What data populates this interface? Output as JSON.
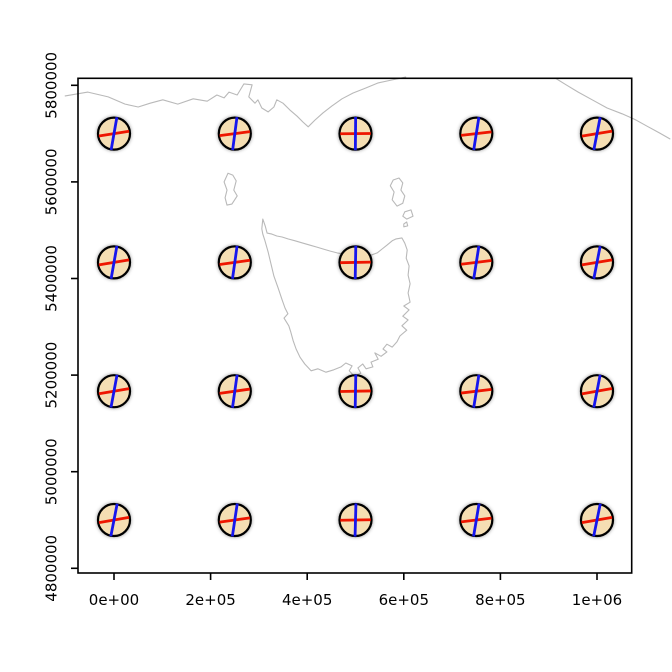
{
  "figure": {
    "background": "#ffffff",
    "description": "R plot: Tissot indicatrix symbols over Tasmania coastline"
  },
  "chart_data": {
    "type": "scatter",
    "title": "",
    "xlabel": "",
    "ylabel": "",
    "grid": false,
    "legend": false,
    "x_axis": {
      "tick_labels": [
        "0e+00",
        "2e+05",
        "4e+05",
        "6e+05",
        "8e+05",
        "1e+06"
      ],
      "tick_values": [
        0,
        200000,
        400000,
        600000,
        800000,
        1000000
      ],
      "range": [
        -74500,
        1071800
      ]
    },
    "y_axis": {
      "tick_labels": [
        "4800000",
        "5000000",
        "5200000",
        "5400000",
        "5600000",
        "5800000"
      ],
      "tick_values": [
        4800000,
        5000000,
        5200000,
        5400000,
        5600000,
        5800000
      ],
      "range": [
        4790300,
        5814500
      ]
    },
    "style": {
      "symbol_fill": "#F5DEB3",
      "symbol_outline": "#000000",
      "meridian_color": "#1414EE",
      "parallel_color": "#EE1400",
      "halo_color": "#000000",
      "coastline_color": "#B9B9B9",
      "axis_color": "#000000",
      "tick_font_px": 15
    },
    "series": [
      {
        "name": "tissot-indicatrix-symbols",
        "points": [
          {
            "x": 0,
            "y": 5700000,
            "meridian_tilt_deg": 10.0,
            "parallel_tilt_deg": 9.0
          },
          {
            "x": 250000,
            "y": 5700000,
            "meridian_tilt_deg": 7.5,
            "parallel_tilt_deg": 7.5
          },
          {
            "x": 500000,
            "y": 5700000,
            "meridian_tilt_deg": 0.5,
            "parallel_tilt_deg": 0.5
          },
          {
            "x": 750000,
            "y": 5700000,
            "meridian_tilt_deg": 9.0,
            "parallel_tilt_deg": 6.5
          },
          {
            "x": 1000000,
            "y": 5700000,
            "meridian_tilt_deg": 11.0,
            "parallel_tilt_deg": 9.5
          },
          {
            "x": 0,
            "y": 5433333,
            "meridian_tilt_deg": 10.0,
            "parallel_tilt_deg": 9.5
          },
          {
            "x": 250000,
            "y": 5433333,
            "meridian_tilt_deg": 8.0,
            "parallel_tilt_deg": 8.0
          },
          {
            "x": 500000,
            "y": 5433333,
            "meridian_tilt_deg": 1.0,
            "parallel_tilt_deg": 1.0
          },
          {
            "x": 750000,
            "y": 5433333,
            "meridian_tilt_deg": 9.0,
            "parallel_tilt_deg": 7.0
          },
          {
            "x": 1000000,
            "y": 5433333,
            "meridian_tilt_deg": 11.0,
            "parallel_tilt_deg": 9.5
          },
          {
            "x": 0,
            "y": 5166667,
            "meridian_tilt_deg": 10.5,
            "parallel_tilt_deg": 9.5
          },
          {
            "x": 250000,
            "y": 5166667,
            "meridian_tilt_deg": 8.0,
            "parallel_tilt_deg": 8.0
          },
          {
            "x": 500000,
            "y": 5166667,
            "meridian_tilt_deg": 1.0,
            "parallel_tilt_deg": 1.0
          },
          {
            "x": 750000,
            "y": 5166667,
            "meridian_tilt_deg": 9.0,
            "parallel_tilt_deg": 7.0
          },
          {
            "x": 1000000,
            "y": 5166667,
            "meridian_tilt_deg": 11.0,
            "parallel_tilt_deg": 10.0
          },
          {
            "x": 0,
            "y": 4900000,
            "meridian_tilt_deg": 11.0,
            "parallel_tilt_deg": 10.0
          },
          {
            "x": 250000,
            "y": 4900000,
            "meridian_tilt_deg": 8.5,
            "parallel_tilt_deg": 8.0
          },
          {
            "x": 500000,
            "y": 4900000,
            "meridian_tilt_deg": 1.5,
            "parallel_tilt_deg": 1.0
          },
          {
            "x": 750000,
            "y": 4900000,
            "meridian_tilt_deg": 9.5,
            "parallel_tilt_deg": 7.0
          },
          {
            "x": 1000000,
            "y": 4900000,
            "meridian_tilt_deg": 11.5,
            "parallel_tilt_deg": 10.0
          }
        ]
      }
    ],
    "coastlines": {
      "mainland_west": {
        "closed": false,
        "points": [
          [
            -101000,
            5778000
          ],
          [
            -54000,
            5786000
          ],
          [
            -12000,
            5776000
          ],
          [
            23000,
            5761000
          ],
          [
            50000,
            5755000
          ],
          [
            75000,
            5763000
          ],
          [
            101000,
            5770000
          ],
          [
            132000,
            5761000
          ],
          [
            164000,
            5772000
          ],
          [
            193000,
            5767000
          ],
          [
            213000,
            5780000
          ],
          [
            228000,
            5774000
          ],
          [
            238000,
            5786000
          ],
          [
            255000,
            5780000
          ],
          [
            269000,
            5803000
          ],
          [
            286000,
            5801000
          ],
          [
            279000,
            5776000
          ],
          [
            292000,
            5763000
          ],
          [
            298000,
            5770000
          ],
          [
            306000,
            5753000
          ],
          [
            319000,
            5745000
          ],
          [
            331000,
            5755000
          ],
          [
            337000,
            5770000
          ],
          [
            350000,
            5763000
          ],
          [
            364000,
            5749000
          ],
          [
            379000,
            5736000
          ],
          [
            391000,
            5724000
          ],
          [
            402000,
            5714000
          ],
          [
            416000,
            5728000
          ],
          [
            433000,
            5743000
          ],
          [
            451000,
            5757000
          ],
          [
            472000,
            5772000
          ],
          [
            495000,
            5784000
          ],
          [
            520000,
            5794000
          ],
          [
            547000,
            5805000
          ],
          [
            575000,
            5811000
          ],
          [
            604000,
            5817000
          ]
        ]
      },
      "mainland_east": {
        "closed": false,
        "points": [
          [
            915000,
            5814000
          ],
          [
            936000,
            5801000
          ],
          [
            961000,
            5786000
          ],
          [
            990000,
            5770000
          ],
          [
            1021000,
            5753000
          ],
          [
            1052000,
            5741000
          ],
          [
            1077000,
            5730000
          ],
          [
            1106000,
            5714000
          ],
          [
            1130000,
            5701000
          ],
          [
            1151000,
            5689000
          ]
        ]
      },
      "tasmania": {
        "closed": true,
        "points": [
          [
            306000,
            5503000
          ],
          [
            308000,
            5523000
          ],
          [
            313000,
            5509000
          ],
          [
            317000,
            5494000
          ],
          [
            327000,
            5492000
          ],
          [
            337000,
            5488000
          ],
          [
            348000,
            5486000
          ],
          [
            360000,
            5482000
          ],
          [
            375000,
            5478000
          ],
          [
            389000,
            5474000
          ],
          [
            406000,
            5469000
          ],
          [
            420000,
            5465000
          ],
          [
            433000,
            5461000
          ],
          [
            447000,
            5457000
          ],
          [
            462000,
            5453000
          ],
          [
            474000,
            5451000
          ],
          [
            489000,
            5447000
          ],
          [
            499000,
            5445000
          ],
          [
            513000,
            5445000
          ],
          [
            524000,
            5447000
          ],
          [
            534000,
            5449000
          ],
          [
            545000,
            5453000
          ],
          [
            555000,
            5461000
          ],
          [
            565000,
            5469000
          ],
          [
            576000,
            5478000
          ],
          [
            584000,
            5482000
          ],
          [
            596000,
            5484000
          ],
          [
            602000,
            5473000
          ],
          [
            607000,
            5459000
          ],
          [
            605000,
            5442000
          ],
          [
            611000,
            5426000
          ],
          [
            609000,
            5407000
          ],
          [
            613000,
            5389000
          ],
          [
            609000,
            5370000
          ],
          [
            613000,
            5351000
          ],
          [
            600000,
            5343000
          ],
          [
            611000,
            5335000
          ],
          [
            598000,
            5322000
          ],
          [
            609000,
            5314000
          ],
          [
            596000,
            5302000
          ],
          [
            606000,
            5293000
          ],
          [
            592000,
            5281000
          ],
          [
            586000,
            5269000
          ],
          [
            576000,
            5258000
          ],
          [
            565000,
            5264000
          ],
          [
            557000,
            5254000
          ],
          [
            565000,
            5248000
          ],
          [
            553000,
            5239000
          ],
          [
            540000,
            5246000
          ],
          [
            547000,
            5233000
          ],
          [
            532000,
            5227000
          ],
          [
            536000,
            5217000
          ],
          [
            522000,
            5213000
          ],
          [
            515000,
            5223000
          ],
          [
            505000,
            5215000
          ],
          [
            511000,
            5204000
          ],
          [
            497000,
            5198000
          ],
          [
            487000,
            5209000
          ],
          [
            493000,
            5219000
          ],
          [
            480000,
            5225000
          ],
          [
            470000,
            5217000
          ],
          [
            455000,
            5211000
          ],
          [
            439000,
            5206000
          ],
          [
            422000,
            5213000
          ],
          [
            408000,
            5209000
          ],
          [
            395000,
            5223000
          ],
          [
            385000,
            5237000
          ],
          [
            377000,
            5254000
          ],
          [
            371000,
            5271000
          ],
          [
            366000,
            5289000
          ],
          [
            362000,
            5302000
          ],
          [
            352000,
            5318000
          ],
          [
            360000,
            5327000
          ],
          [
            354000,
            5339000
          ],
          [
            348000,
            5356000
          ],
          [
            340000,
            5380000
          ],
          [
            331000,
            5405000
          ],
          [
            325000,
            5430000
          ],
          [
            319000,
            5455000
          ],
          [
            312000,
            5480000
          ],
          [
            308000,
            5492000
          ]
        ]
      },
      "king_island": {
        "closed": true,
        "points": [
          [
            236000,
            5618000
          ],
          [
            246000,
            5614000
          ],
          [
            253000,
            5602000
          ],
          [
            248000,
            5583000
          ],
          [
            255000,
            5571000
          ],
          [
            244000,
            5554000
          ],
          [
            234000,
            5552000
          ],
          [
            230000,
            5567000
          ],
          [
            234000,
            5583000
          ],
          [
            228000,
            5600000
          ]
        ]
      },
      "flinders_island": {
        "closed": true,
        "points": [
          [
            578000,
            5604000
          ],
          [
            590000,
            5608000
          ],
          [
            598000,
            5598000
          ],
          [
            594000,
            5583000
          ],
          [
            602000,
            5571000
          ],
          [
            598000,
            5556000
          ],
          [
            586000,
            5550000
          ],
          [
            576000,
            5563000
          ],
          [
            580000,
            5579000
          ],
          [
            572000,
            5592000
          ]
        ]
      },
      "cape_barren_island": {
        "closed": true,
        "points": [
          [
            602000,
            5538000
          ],
          [
            615000,
            5542000
          ],
          [
            619000,
            5529000
          ],
          [
            606000,
            5523000
          ],
          [
            598000,
            5529000
          ]
        ]
      },
      "small_islet": {
        "closed": true,
        "points": [
          [
            600000,
            5513000
          ],
          [
            606000,
            5517000
          ],
          [
            608000,
            5509000
          ],
          [
            600000,
            5507000
          ]
        ]
      }
    }
  }
}
